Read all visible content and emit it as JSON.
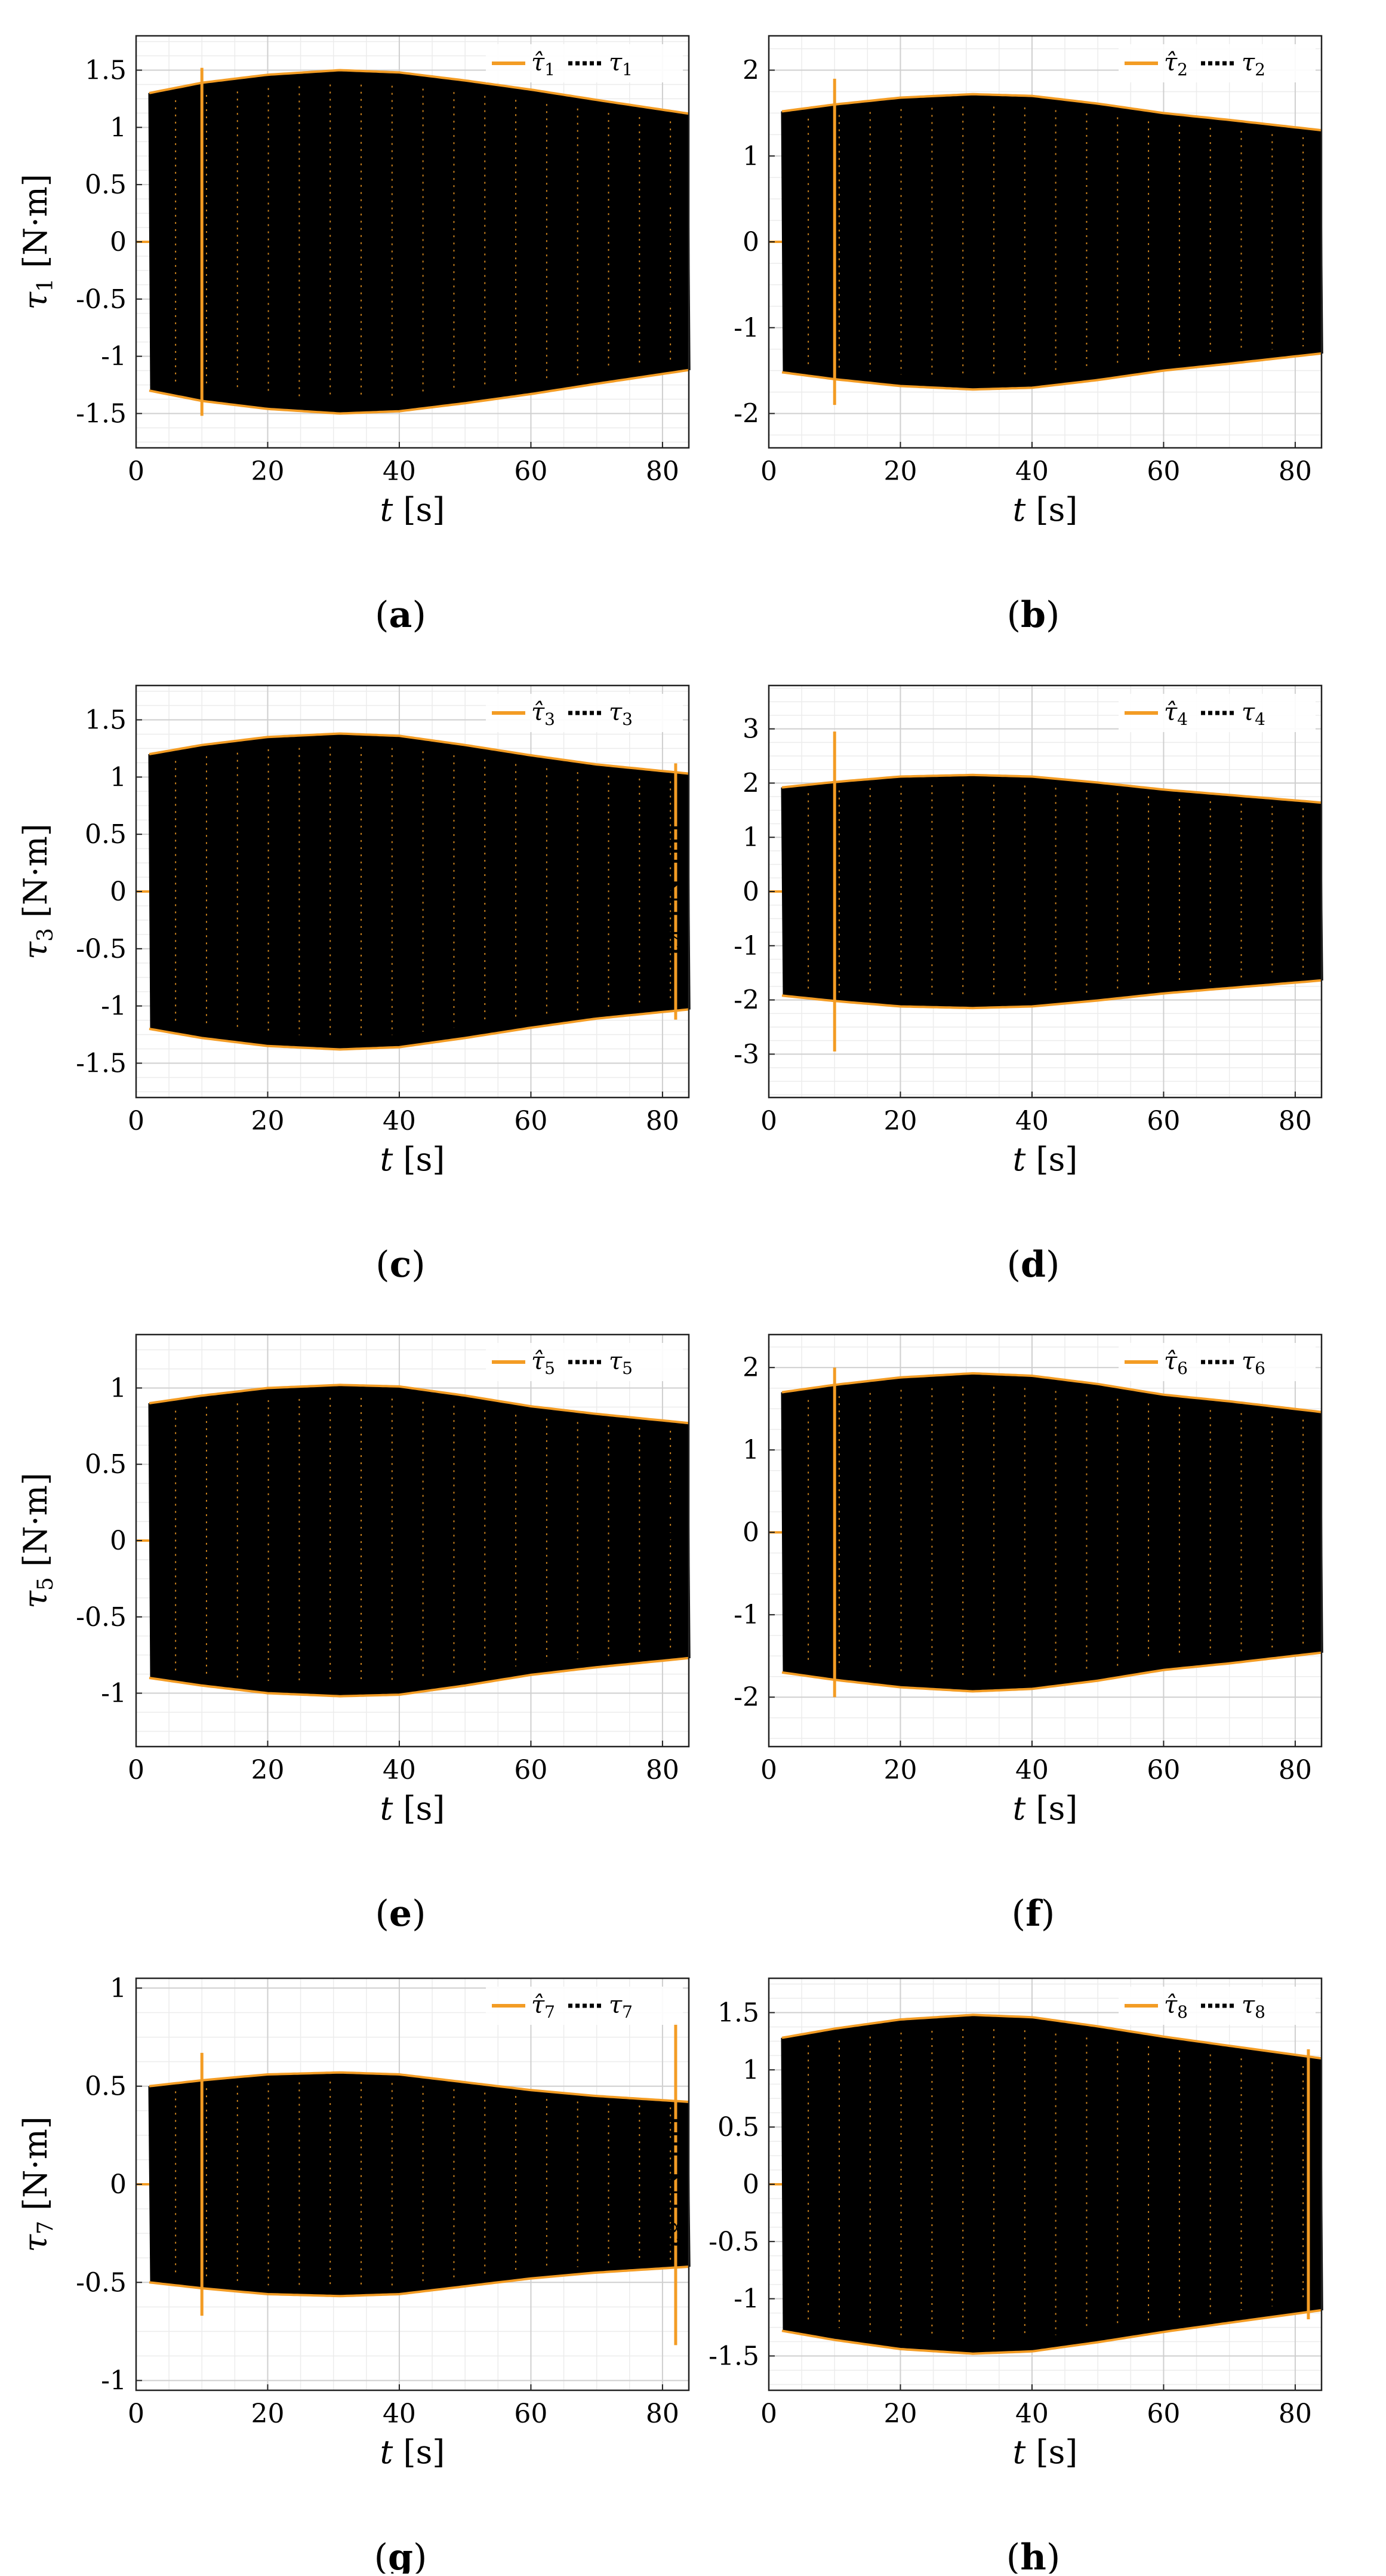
{
  "figure": {
    "x_tick_labels": [
      "0",
      "20",
      "40",
      "60",
      "80"
    ],
    "colors": {
      "estimate": "#F39C24",
      "measured": "#000000",
      "grid": "#cfcfcf",
      "minor_grid": "#ececec"
    }
  },
  "chart_data": [
    {
      "type": "line",
      "panel_label": "(a)",
      "title": "",
      "xlabel": "t [s]",
      "ylabel": "τ1 [N·m]",
      "xlim": [
        0,
        84
      ],
      "ylim": [
        -1.8,
        1.8
      ],
      "y_ticks": [
        -1.5,
        -1,
        -0.5,
        0,
        0.5,
        1,
        1.5
      ],
      "y_tick_labels": [
        "-1.5",
        "-1",
        "-0.5",
        "0",
        "0.5",
        "1",
        "1.5"
      ],
      "legend_position": "top-right",
      "grid": true,
      "series": [
        {
          "name": "τ̂1",
          "style": "solid",
          "color": "#F39C24",
          "envelope": {
            "t": [
              2,
              10,
              20,
              31,
              40,
              50,
              60,
              70,
              84
            ],
            "amp": [
              1.3,
              1.39,
              1.46,
              1.5,
              1.48,
              1.41,
              1.33,
              1.24,
              1.12
            ]
          },
          "spike": {
            "t": 10,
            "amp": 1.52
          }
        },
        {
          "name": "τ1",
          "style": "dotted",
          "color": "#000000",
          "envelope": {
            "t": [
              2,
              10,
              20,
              31,
              40,
              50,
              60,
              70,
              84
            ],
            "amp": [
              1.3,
              1.39,
              1.46,
              1.5,
              1.48,
              1.41,
              1.33,
              1.24,
              1.12
            ]
          },
          "t_start": 2
        }
      ]
    },
    {
      "type": "line",
      "panel_label": "(b)",
      "title": "",
      "xlabel": "t [s]",
      "ylabel": "τ2 [N·m]",
      "xlim": [
        0,
        84
      ],
      "ylim": [
        -2.4,
        2.4
      ],
      "y_ticks": [
        -2,
        -1,
        0,
        1,
        2
      ],
      "y_tick_labels": [
        "-2",
        "-1",
        "0",
        "1",
        "2"
      ],
      "legend_position": "top-right",
      "grid": true,
      "series": [
        {
          "name": "τ̂2",
          "style": "solid",
          "color": "#F39C24",
          "envelope": {
            "t": [
              2,
              10,
              20,
              31,
              40,
              50,
              60,
              70,
              84
            ],
            "amp": [
              1.52,
              1.6,
              1.68,
              1.72,
              1.7,
              1.61,
              1.5,
              1.42,
              1.3
            ]
          },
          "spike": {
            "t": 10,
            "amp": 1.9
          }
        },
        {
          "name": "τ2",
          "style": "dotted",
          "color": "#000000",
          "envelope": {
            "t": [
              2,
              10,
              20,
              31,
              40,
              50,
              60,
              70,
              84
            ],
            "amp": [
              1.52,
              1.6,
              1.68,
              1.72,
              1.7,
              1.61,
              1.5,
              1.42,
              1.3
            ]
          },
          "t_start": 2
        }
      ]
    },
    {
      "type": "line",
      "panel_label": "(c)",
      "title": "",
      "xlabel": "t [s]",
      "ylabel": "τ3 [N·m]",
      "xlim": [
        0,
        84
      ],
      "ylim": [
        -1.8,
        1.8
      ],
      "y_ticks": [
        -1.5,
        -1,
        -0.5,
        0,
        0.5,
        1,
        1.5
      ],
      "y_tick_labels": [
        "-1.5",
        "-1",
        "-0.5",
        "0",
        "0.5",
        "1",
        "1.5"
      ],
      "legend_position": "top-right",
      "grid": true,
      "series": [
        {
          "name": "τ̂3",
          "style": "solid",
          "color": "#F39C24",
          "envelope": {
            "t": [
              2,
              10,
              20,
              31,
              40,
              50,
              60,
              70,
              84
            ],
            "amp": [
              1.2,
              1.28,
              1.35,
              1.38,
              1.36,
              1.28,
              1.19,
              1.11,
              1.03
            ]
          },
          "spike": {
            "t": 82,
            "amp": 1.12
          }
        },
        {
          "name": "τ3",
          "style": "dotted",
          "color": "#000000",
          "envelope": {
            "t": [
              2,
              10,
              20,
              31,
              40,
              50,
              60,
              70,
              84
            ],
            "amp": [
              1.2,
              1.28,
              1.35,
              1.38,
              1.36,
              1.28,
              1.19,
              1.11,
              1.03
            ]
          },
          "t_start": 2
        }
      ]
    },
    {
      "type": "line",
      "panel_label": "(d)",
      "title": "",
      "xlabel": "t [s]",
      "ylabel": "τ4 [N·m]",
      "xlim": [
        0,
        84
      ],
      "ylim": [
        -3.8,
        3.8
      ],
      "y_ticks": [
        -3,
        -2,
        -1,
        0,
        1,
        2,
        3
      ],
      "y_tick_labels": [
        "-3",
        "-2",
        "-1",
        "0",
        "1",
        "2",
        "3"
      ],
      "legend_position": "top-right",
      "grid": true,
      "series": [
        {
          "name": "τ̂4",
          "style": "solid",
          "color": "#F39C24",
          "envelope": {
            "t": [
              2,
              10,
              20,
              31,
              40,
              50,
              60,
              70,
              84
            ],
            "amp": [
              1.92,
              2.02,
              2.12,
              2.15,
              2.12,
              2.01,
              1.88,
              1.78,
              1.64
            ]
          },
          "spike": {
            "t": 10,
            "amp": 2.95
          }
        },
        {
          "name": "τ4",
          "style": "dotted",
          "color": "#000000",
          "envelope": {
            "t": [
              2,
              10,
              20,
              31,
              40,
              50,
              60,
              70,
              84
            ],
            "amp": [
              1.92,
              2.02,
              2.12,
              2.15,
              2.12,
              2.01,
              1.88,
              1.78,
              1.64
            ]
          },
          "t_start": 2
        }
      ]
    },
    {
      "type": "line",
      "panel_label": "(e)",
      "title": "",
      "xlabel": "t [s]",
      "ylabel": "τ5 [N·m]",
      "xlim": [
        0,
        84
      ],
      "ylim": [
        -1.35,
        1.35
      ],
      "y_ticks": [
        -1,
        -0.5,
        0,
        0.5,
        1
      ],
      "y_tick_labels": [
        "-1",
        "-0.5",
        "0",
        "0.5",
        "1"
      ],
      "legend_position": "top-right",
      "grid": true,
      "series": [
        {
          "name": "τ̂5",
          "style": "solid",
          "color": "#F39C24",
          "envelope": {
            "t": [
              2,
              10,
              20,
              31,
              40,
              50,
              60,
              70,
              84
            ],
            "amp": [
              0.9,
              0.95,
              1.0,
              1.02,
              1.01,
              0.95,
              0.88,
              0.83,
              0.77
            ]
          },
          "spike": null
        },
        {
          "name": "τ5",
          "style": "dotted",
          "color": "#000000",
          "envelope": {
            "t": [
              2,
              10,
              20,
              31,
              40,
              50,
              60,
              70,
              84
            ],
            "amp": [
              0.9,
              0.95,
              1.0,
              1.02,
              1.01,
              0.95,
              0.88,
              0.83,
              0.77
            ]
          },
          "t_start": 2
        }
      ]
    },
    {
      "type": "line",
      "panel_label": "(f)",
      "title": "",
      "xlabel": "t [s]",
      "ylabel": "τ6 [N·m]",
      "xlim": [
        0,
        84
      ],
      "ylim": [
        -2.6,
        2.4
      ],
      "y_ticks": [
        -2,
        -1,
        0,
        1,
        2
      ],
      "y_tick_labels": [
        "-2",
        "-1",
        "0",
        "1",
        "2"
      ],
      "legend_position": "top-right",
      "grid": true,
      "series": [
        {
          "name": "τ̂6",
          "style": "solid",
          "color": "#F39C24",
          "envelope": {
            "t": [
              2,
              10,
              20,
              31,
              40,
              50,
              60,
              70,
              84
            ],
            "amp": [
              1.7,
              1.79,
              1.88,
              1.93,
              1.9,
              1.8,
              1.67,
              1.59,
              1.46
            ]
          },
          "spike": {
            "t": 10,
            "amp": 2.0
          }
        },
        {
          "name": "τ6",
          "style": "dotted",
          "color": "#000000",
          "envelope": {
            "t": [
              2,
              10,
              20,
              31,
              40,
              50,
              60,
              70,
              84
            ],
            "amp": [
              1.7,
              1.79,
              1.88,
              1.93,
              1.9,
              1.8,
              1.67,
              1.59,
              1.46
            ]
          },
          "t_start": 2
        }
      ]
    },
    {
      "type": "line",
      "panel_label": "(g)",
      "title": "",
      "xlabel": "t [s]",
      "ylabel": "τ7 [N·m]",
      "xlim": [
        0,
        84
      ],
      "ylim": [
        -1.05,
        1.05
      ],
      "y_ticks": [
        -1,
        -0.5,
        0,
        0.5,
        1
      ],
      "y_tick_labels": [
        "-1",
        "-0.5",
        "0",
        "0.5",
        "1"
      ],
      "legend_position": "top-right",
      "grid": true,
      "series": [
        {
          "name": "τ̂7",
          "style": "solid",
          "color": "#F39C24",
          "envelope": {
            "t": [
              2,
              10,
              20,
              31,
              40,
              50,
              60,
              70,
              84
            ],
            "amp": [
              0.5,
              0.53,
              0.56,
              0.57,
              0.56,
              0.52,
              0.48,
              0.45,
              0.42
            ]
          },
          "spike": {
            "t": 10,
            "amp": 0.67
          },
          "spike2": {
            "t": 82,
            "amp": 0.82
          }
        },
        {
          "name": "τ7",
          "style": "dotted",
          "color": "#000000",
          "envelope": {
            "t": [
              2,
              10,
              20,
              31,
              40,
              50,
              60,
              70,
              84
            ],
            "amp": [
              0.5,
              0.53,
              0.56,
              0.57,
              0.56,
              0.52,
              0.48,
              0.45,
              0.42
            ]
          },
          "t_start": 2
        }
      ]
    },
    {
      "type": "line",
      "panel_label": "(h)",
      "title": "",
      "xlabel": "t [s]",
      "ylabel": "τ8 [N·m]",
      "xlim": [
        0,
        84
      ],
      "ylim": [
        -1.8,
        1.8
      ],
      "y_ticks": [
        -1.5,
        -1,
        -0.5,
        0,
        0.5,
        1,
        1.5
      ],
      "y_tick_labels": [
        "-1.5",
        "-1",
        "-0.5",
        "0",
        "0.5",
        "1",
        "1.5"
      ],
      "legend_position": "top-right",
      "grid": true,
      "series": [
        {
          "name": "τ̂8",
          "style": "solid",
          "color": "#F39C24",
          "envelope": {
            "t": [
              2,
              10,
              20,
              31,
              40,
              50,
              60,
              70,
              84
            ],
            "amp": [
              1.28,
              1.36,
              1.44,
              1.48,
              1.46,
              1.38,
              1.29,
              1.21,
              1.1
            ]
          },
          "spike": {
            "t": 82,
            "amp": 1.18
          }
        },
        {
          "name": "τ8",
          "style": "dotted",
          "color": "#000000",
          "envelope": {
            "t": [
              2,
              10,
              20,
              31,
              40,
              50,
              60,
              70,
              84
            ],
            "amp": [
              1.28,
              1.36,
              1.44,
              1.48,
              1.46,
              1.38,
              1.29,
              1.21,
              1.1
            ]
          },
          "t_start": 2
        }
      ]
    }
  ]
}
